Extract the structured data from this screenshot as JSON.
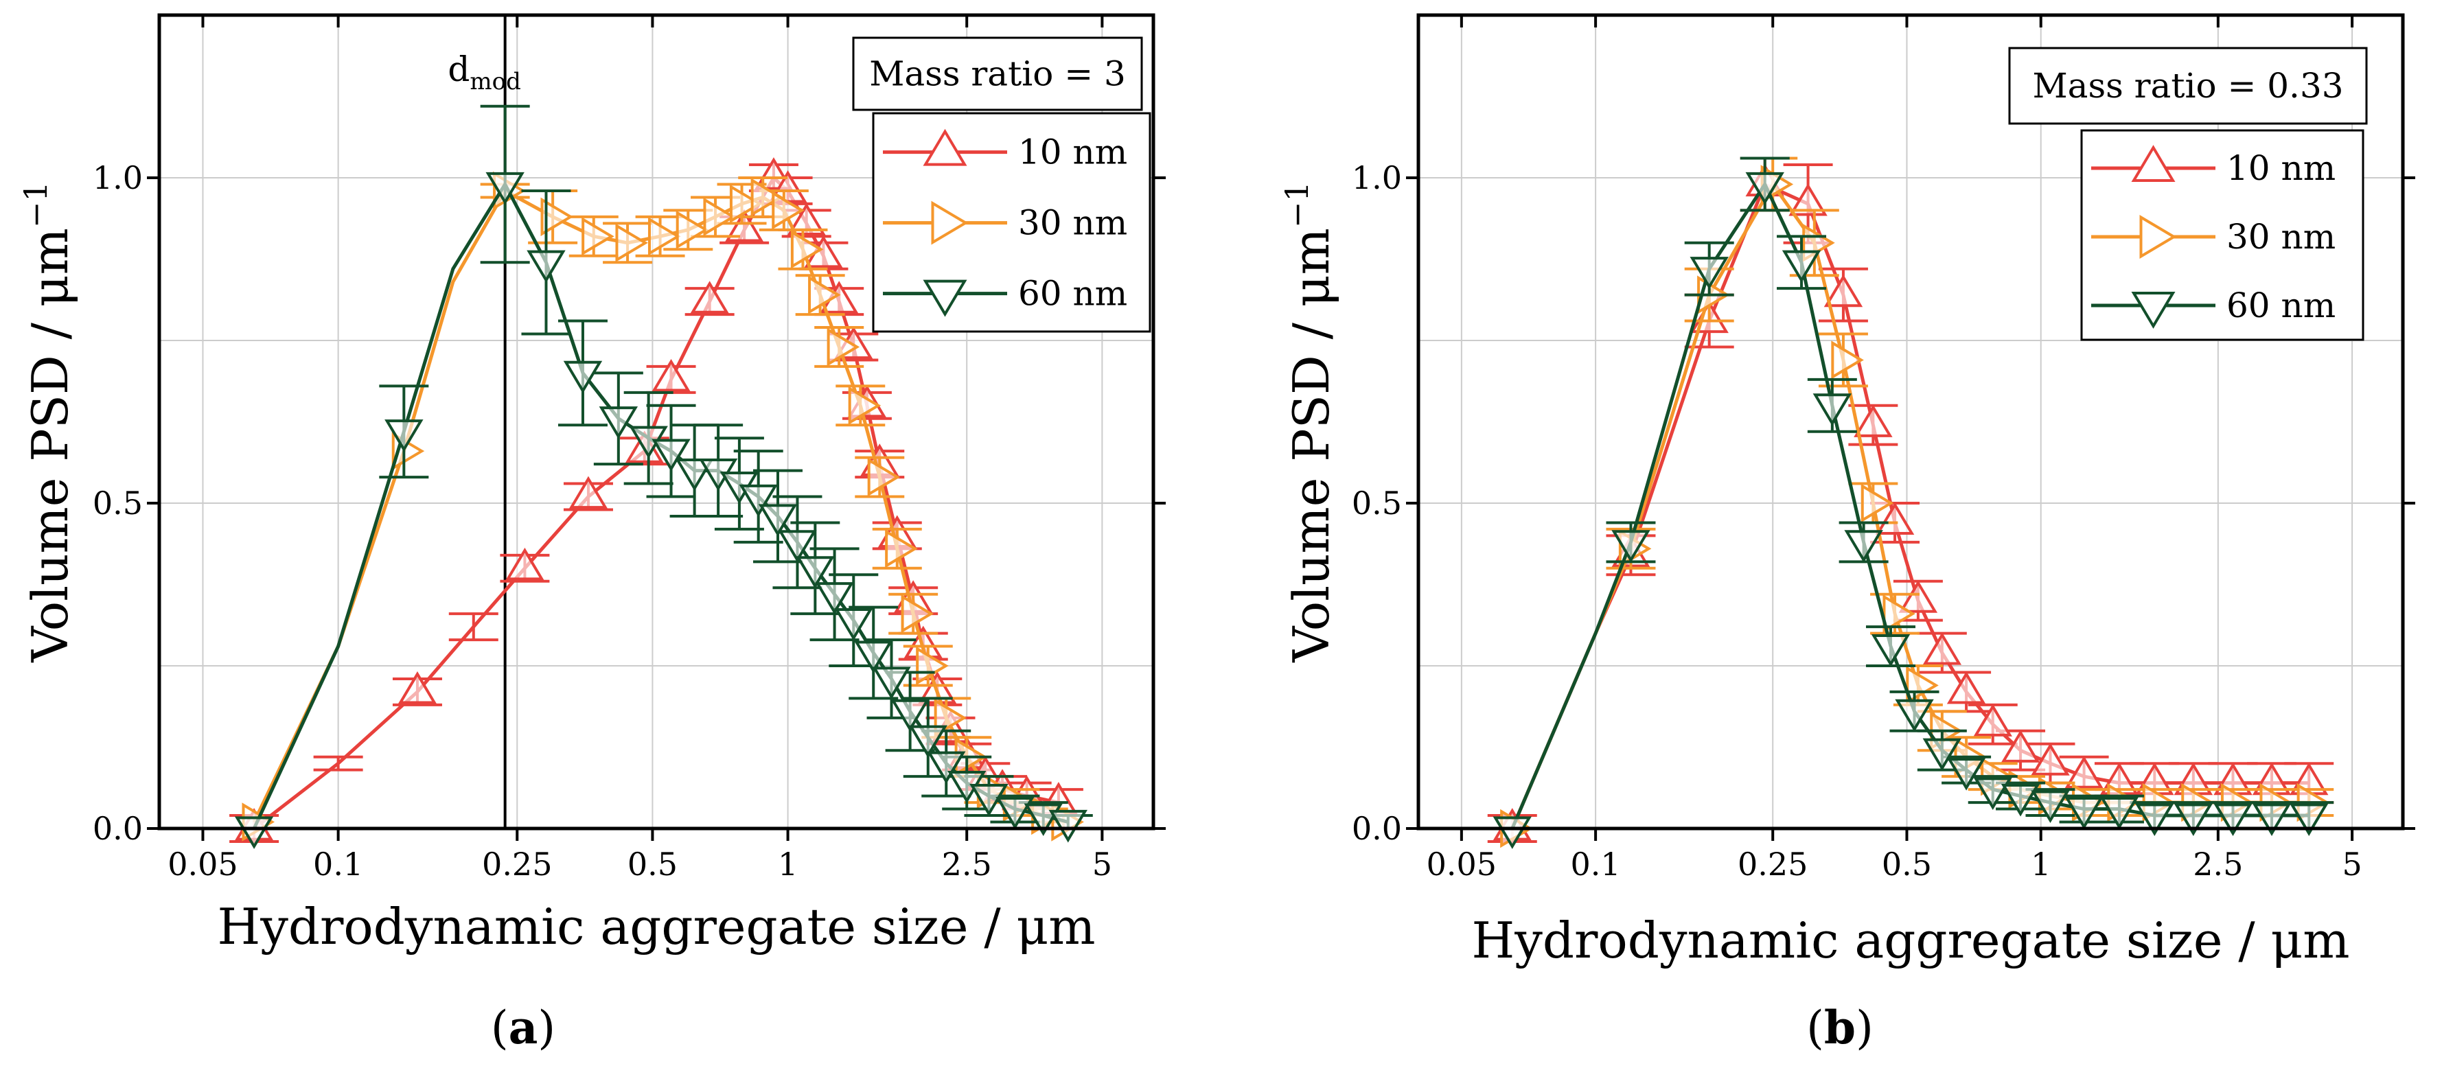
{
  "figure": {
    "panel_labels": [
      {
        "open": "(",
        "letter": "a",
        "close": ")"
      },
      {
        "open": "(",
        "letter": "b",
        "close": ")"
      }
    ]
  },
  "chart_data": [
    {
      "type": "line",
      "panel": "a",
      "annotation": "Mass ratio = 3",
      "xlabel": "Hydrodynamic aggregate size / μm",
      "ylabel_main": "Volume PSD / μm",
      "ylabel_superscript": "−1",
      "xscale": "log",
      "xlim": [
        0.04,
        6.5
      ],
      "ylim": [
        0,
        1.25
      ],
      "x_ticks": [
        0.05,
        0.1,
        0.25,
        0.5,
        1,
        2.5,
        5
      ],
      "x_tick_labels": [
        "0.05",
        "0.1",
        "0.25",
        "0.5",
        "1",
        "2.5",
        "5"
      ],
      "y_ticks": [
        0.0,
        0.5,
        1.0
      ],
      "y_tick_labels": [
        "0.0",
        "0.5",
        "1.0"
      ],
      "grid": true,
      "legend_position": "top-right",
      "vline": {
        "x": 0.235,
        "label": "d",
        "label_subscript": "mod"
      },
      "series": [
        {
          "name": "10 nm",
          "color": "#e8413c",
          "marker": "triangle-up",
          "x": [
            0.065,
            0.1,
            0.15,
            0.2,
            0.26,
            0.36,
            0.48,
            0.55,
            0.67,
            0.8,
            0.93,
            1.0,
            1.1,
            1.2,
            1.3,
            1.4,
            1.5,
            1.6,
            1.75,
            1.9,
            2.0,
            2.15,
            2.3,
            2.5,
            2.75,
            3.0,
            3.4,
            4.0
          ],
          "y": [
            0.0,
            0.1,
            0.21,
            0.31,
            0.4,
            0.51,
            0.58,
            0.69,
            0.81,
            0.92,
            1.0,
            0.98,
            0.93,
            0.88,
            0.81,
            0.74,
            0.65,
            0.56,
            0.45,
            0.35,
            0.28,
            0.21,
            0.15,
            0.11,
            0.08,
            0.06,
            0.05,
            0.04
          ],
          "err": [
            0.02,
            0.01,
            0.02,
            0.02,
            0.02,
            0.02,
            0.02,
            0.02,
            0.02,
            0.02,
            0.02,
            0.02,
            0.02,
            0.02,
            0.02,
            0.02,
            0.02,
            0.02,
            0.02,
            0.02,
            0.02,
            0.02,
            0.02,
            0.02,
            0.02,
            0.02,
            0.02,
            0.02
          ],
          "marker_indices": [
            0,
            2,
            4,
            5,
            6,
            7,
            8,
            9,
            10,
            11,
            12,
            13,
            14,
            15,
            16,
            17,
            18,
            19,
            20,
            21,
            22,
            23,
            24,
            25,
            26,
            27
          ]
        },
        {
          "name": "30 nm",
          "color": "#f5972c",
          "marker": "triangle-right",
          "x": [
            0.065,
            0.1,
            0.14,
            0.18,
            0.235,
            0.3,
            0.37,
            0.44,
            0.52,
            0.6,
            0.69,
            0.79,
            0.88,
            0.98,
            1.08,
            1.18,
            1.3,
            1.45,
            1.6,
            1.75,
            1.9,
            2.05,
            2.25,
            2.5,
            2.8,
            3.2,
            3.7,
            4.1
          ],
          "y": [
            0.01,
            0.28,
            0.58,
            0.84,
            0.98,
            0.94,
            0.91,
            0.9,
            0.91,
            0.92,
            0.94,
            0.96,
            0.97,
            0.95,
            0.89,
            0.82,
            0.74,
            0.65,
            0.54,
            0.43,
            0.33,
            0.25,
            0.17,
            0.11,
            0.06,
            0.04,
            0.02,
            0.01
          ],
          "err": [
            0.0,
            0.0,
            0.0,
            0.0,
            0.01,
            0.04,
            0.03,
            0.03,
            0.03,
            0.03,
            0.03,
            0.03,
            0.03,
            0.03,
            0.03,
            0.03,
            0.03,
            0.03,
            0.03,
            0.03,
            0.03,
            0.03,
            0.03,
            0.03,
            0.02,
            0.02,
            0.01,
            0.01
          ],
          "marker_indices": [
            0,
            2,
            4,
            5,
            6,
            7,
            8,
            9,
            10,
            11,
            12,
            13,
            14,
            15,
            16,
            17,
            18,
            19,
            20,
            21,
            22,
            23,
            24,
            25,
            26,
            27
          ]
        },
        {
          "name": "60 nm",
          "color": "#124f2b",
          "marker": "triangle-down",
          "x": [
            0.065,
            0.1,
            0.14,
            0.18,
            0.235,
            0.29,
            0.35,
            0.42,
            0.49,
            0.55,
            0.62,
            0.7,
            0.78,
            0.86,
            0.95,
            1.05,
            1.15,
            1.27,
            1.4,
            1.55,
            1.7,
            1.87,
            2.05,
            2.25,
            2.5,
            2.8,
            3.2,
            3.7,
            4.2
          ],
          "y": [
            0.0,
            0.28,
            0.61,
            0.86,
            0.99,
            0.87,
            0.7,
            0.63,
            0.6,
            0.58,
            0.55,
            0.55,
            0.53,
            0.51,
            0.48,
            0.44,
            0.4,
            0.36,
            0.32,
            0.27,
            0.23,
            0.18,
            0.14,
            0.1,
            0.07,
            0.05,
            0.03,
            0.02,
            0.01
          ],
          "err": [
            0.0,
            0.0,
            0.07,
            0.0,
            0.12,
            0.11,
            0.08,
            0.07,
            0.07,
            0.07,
            0.07,
            0.07,
            0.07,
            0.07,
            0.07,
            0.07,
            0.07,
            0.07,
            0.07,
            0.07,
            0.06,
            0.06,
            0.06,
            0.05,
            0.04,
            0.03,
            0.02,
            0.02,
            0.01
          ],
          "marker_indices": [
            0,
            2,
            4,
            5,
            6,
            7,
            8,
            9,
            10,
            11,
            12,
            13,
            14,
            15,
            16,
            17,
            18,
            19,
            20,
            21,
            22,
            23,
            24,
            25,
            26,
            27,
            28
          ]
        }
      ]
    },
    {
      "type": "line",
      "panel": "b",
      "annotation": "Mass ratio = 0.33",
      "xlabel": "Hydrodynamic aggregate size / μm",
      "ylabel_main": "Volume PSD / μm",
      "ylabel_superscript": "−1",
      "xscale": "log",
      "xlim": [
        0.04,
        6.5
      ],
      "ylim": [
        0,
        1.25
      ],
      "x_ticks": [
        0.05,
        0.1,
        0.25,
        0.5,
        1,
        2.5,
        5
      ],
      "x_tick_labels": [
        "0.05",
        "0.1",
        "0.25",
        "0.5",
        "1",
        "2.5",
        "5"
      ],
      "y_ticks": [
        0.0,
        0.5,
        1.0
      ],
      "y_tick_labels": [
        "0.0",
        "0.5",
        "1.0"
      ],
      "grid": true,
      "legend_position": "top-right",
      "series": [
        {
          "name": "10 nm",
          "color": "#e8413c",
          "marker": "triangle-up",
          "x": [
            0.065,
            0.1,
            0.12,
            0.18,
            0.24,
            0.3,
            0.36,
            0.42,
            0.47,
            0.53,
            0.6,
            0.68,
            0.78,
            0.9,
            1.05,
            1.25,
            1.5,
            1.8,
            2.2,
            2.7,
            3.3,
            4.0
          ],
          "y": [
            0.0,
            0.3,
            0.42,
            0.78,
            0.99,
            0.96,
            0.82,
            0.62,
            0.47,
            0.35,
            0.27,
            0.21,
            0.16,
            0.12,
            0.1,
            0.08,
            0.07,
            0.07,
            0.07,
            0.07,
            0.07,
            0.07
          ],
          "err": [
            0.02,
            0.0,
            0.03,
            0.04,
            0.04,
            0.06,
            0.04,
            0.03,
            0.03,
            0.03,
            0.03,
            0.03,
            0.03,
            0.03,
            0.03,
            0.03,
            0.03,
            0.03,
            0.03,
            0.03,
            0.03,
            0.03
          ],
          "marker_indices": [
            0,
            2,
            3,
            4,
            5,
            6,
            7,
            8,
            9,
            10,
            11,
            12,
            13,
            14,
            15,
            16,
            17,
            18,
            19,
            20,
            21
          ]
        },
        {
          "name": "30 nm",
          "color": "#f5972c",
          "marker": "triangle-right",
          "x": [
            0.065,
            0.1,
            0.12,
            0.18,
            0.25,
            0.31,
            0.36,
            0.42,
            0.47,
            0.53,
            0.6,
            0.68,
            0.78,
            0.9,
            1.05,
            1.25,
            1.5,
            1.8,
            2.2,
            2.7,
            3.3,
            4.0
          ],
          "y": [
            0.0,
            0.3,
            0.43,
            0.82,
            0.99,
            0.9,
            0.72,
            0.5,
            0.33,
            0.22,
            0.15,
            0.11,
            0.08,
            0.06,
            0.05,
            0.04,
            0.04,
            0.04,
            0.04,
            0.04,
            0.04,
            0.04
          ],
          "err": [
            0.0,
            0.0,
            0.03,
            0.04,
            0.04,
            0.05,
            0.04,
            0.03,
            0.03,
            0.03,
            0.03,
            0.03,
            0.02,
            0.02,
            0.02,
            0.02,
            0.02,
            0.02,
            0.02,
            0.02,
            0.02,
            0.02
          ],
          "marker_indices": [
            0,
            2,
            3,
            4,
            5,
            6,
            7,
            8,
            9,
            10,
            11,
            12,
            13,
            14,
            15,
            16,
            17,
            18,
            19,
            20,
            21
          ]
        },
        {
          "name": "60 nm",
          "color": "#124f2b",
          "marker": "triangle-down",
          "x": [
            0.065,
            0.1,
            0.12,
            0.18,
            0.24,
            0.29,
            0.34,
            0.4,
            0.46,
            0.52,
            0.6,
            0.68,
            0.78,
            0.9,
            1.05,
            1.25,
            1.5,
            1.8,
            2.2,
            2.7,
            3.3,
            4.0
          ],
          "y": [
            0.0,
            0.3,
            0.44,
            0.86,
            0.99,
            0.87,
            0.65,
            0.44,
            0.28,
            0.18,
            0.12,
            0.09,
            0.06,
            0.05,
            0.04,
            0.03,
            0.03,
            0.02,
            0.02,
            0.02,
            0.02,
            0.02
          ],
          "err": [
            0.0,
            0.0,
            0.03,
            0.04,
            0.04,
            0.04,
            0.04,
            0.03,
            0.03,
            0.03,
            0.03,
            0.02,
            0.02,
            0.02,
            0.02,
            0.02,
            0.02,
            0.02,
            0.02,
            0.02,
            0.02,
            0.02
          ],
          "marker_indices": [
            0,
            2,
            3,
            4,
            5,
            6,
            7,
            8,
            9,
            10,
            11,
            12,
            13,
            14,
            15,
            16,
            17,
            18,
            19,
            20,
            21
          ]
        }
      ]
    }
  ]
}
